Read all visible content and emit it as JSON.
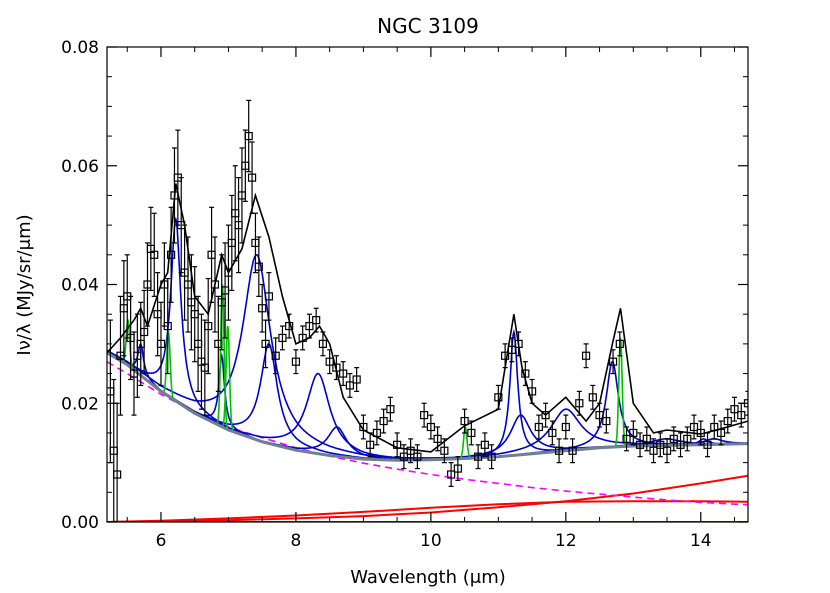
{
  "chart_data": {
    "type": "line",
    "title": "NGC 3109",
    "xlabel": "Wavelength (μm)",
    "ylabel": "Iν/λ (MJy/sr/μm)",
    "xlim": [
      5.2,
      14.7
    ],
    "ylim": [
      0.0,
      0.08
    ],
    "x_ticks": [
      6,
      8,
      10,
      12,
      14
    ],
    "x_tick_labels": [
      "6",
      "8",
      "10",
      "12",
      "14"
    ],
    "y_ticks": [
      0.0,
      0.02,
      0.04,
      0.06,
      0.08
    ],
    "y_tick_labels": [
      "0.00",
      "0.02",
      "0.04",
      "0.06",
      "0.08"
    ],
    "grid": false,
    "legend": "none",
    "colors": {
      "observed": "#000000",
      "total_model": "#000000",
      "pah_features": "#0000cc",
      "emission_lines": "#00c000",
      "stellar_continuum": "#ff00ff",
      "dust_continuum": "#ff0000",
      "total_continuum": "#708090"
    },
    "observed": {
      "x": [
        5.25,
        5.3,
        5.35,
        5.4,
        5.45,
        5.5,
        5.55,
        5.6,
        5.65,
        5.7,
        5.75,
        5.8,
        5.85,
        5.9,
        5.95,
        6.0,
        6.05,
        6.1,
        6.15,
        6.2,
        6.25,
        6.3,
        6.35,
        6.4,
        6.45,
        6.5,
        6.55,
        6.6,
        6.65,
        6.7,
        6.75,
        6.8,
        6.85,
        6.9,
        6.95,
        7.0,
        7.05,
        7.1,
        7.15,
        7.2,
        7.25,
        7.3,
        7.35,
        7.4,
        7.45,
        7.5,
        7.55,
        7.6,
        7.7,
        7.8,
        7.9,
        8.0,
        8.1,
        8.2,
        8.3,
        8.4,
        8.5,
        8.6,
        8.7,
        8.8,
        8.9,
        9.0,
        9.1,
        9.2,
        9.3,
        9.4,
        9.5,
        9.6,
        9.7,
        9.8,
        9.9,
        10.0,
        10.1,
        10.2,
        10.3,
        10.4,
        10.5,
        10.6,
        10.7,
        10.8,
        10.9,
        11.0,
        11.1,
        11.2,
        11.3,
        11.4,
        11.5,
        11.6,
        11.7,
        11.8,
        11.9,
        12.0,
        12.1,
        12.2,
        12.3,
        12.4,
        12.5,
        12.6,
        12.7,
        12.8,
        12.9,
        13.0,
        13.1,
        13.2,
        13.3,
        13.4,
        13.5,
        13.6,
        13.7,
        13.8,
        13.9,
        14.0,
        14.1,
        14.2,
        14.3,
        14.4,
        14.5,
        14.6,
        14.7
      ],
      "y": [
        0.022,
        0.012,
        0.008,
        0.028,
        0.036,
        0.038,
        0.031,
        0.025,
        0.028,
        0.03,
        0.032,
        0.04,
        0.046,
        0.045,
        0.035,
        0.03,
        0.04,
        0.033,
        0.045,
        0.055,
        0.058,
        0.05,
        0.042,
        0.04,
        0.037,
        0.035,
        0.03,
        0.027,
        0.026,
        0.033,
        0.045,
        0.04,
        0.03,
        0.037,
        0.039,
        0.042,
        0.047,
        0.052,
        0.05,
        0.055,
        0.06,
        0.065,
        0.058,
        0.047,
        0.043,
        0.036,
        0.03,
        0.038,
        0.028,
        0.031,
        0.033,
        0.027,
        0.031,
        0.033,
        0.034,
        0.03,
        0.027,
        0.026,
        0.025,
        0.023,
        0.024,
        0.016,
        0.013,
        0.015,
        0.017,
        0.019,
        0.013,
        0.011,
        0.012,
        0.011,
        0.018,
        0.016,
        0.014,
        0.012,
        0.008,
        0.009,
        0.017,
        0.015,
        0.011,
        0.013,
        0.011,
        0.021,
        0.028,
        0.029,
        0.03,
        0.025,
        0.022,
        0.016,
        0.018,
        0.015,
        0.012,
        0.016,
        0.012,
        0.02,
        0.028,
        0.021,
        0.018,
        0.017,
        0.027,
        0.03,
        0.014,
        0.015,
        0.013,
        0.014,
        0.012,
        0.013,
        0.012,
        0.014,
        0.013,
        0.014,
        0.016,
        0.015,
        0.013,
        0.016,
        0.015,
        0.017,
        0.019,
        0.018,
        0.02
      ],
      "err": [
        0.012,
        0.012,
        0.012,
        0.01,
        0.008,
        0.007,
        0.007,
        0.007,
        0.007,
        0.007,
        0.007,
        0.007,
        0.007,
        0.007,
        0.007,
        0.007,
        0.007,
        0.008,
        0.008,
        0.008,
        0.008,
        0.008,
        0.008,
        0.008,
        0.008,
        0.008,
        0.008,
        0.008,
        0.008,
        0.008,
        0.008,
        0.008,
        0.008,
        0.008,
        0.008,
        0.008,
        0.008,
        0.008,
        0.008,
        0.008,
        0.006,
        0.006,
        0.006,
        0.005,
        0.005,
        0.004,
        0.004,
        0.004,
        0.003,
        0.002,
        0.002,
        0.002,
        0.002,
        0.002,
        0.002,
        0.002,
        0.002,
        0.002,
        0.002,
        0.002,
        0.002,
        0.002,
        0.002,
        0.002,
        0.002,
        0.002,
        0.002,
        0.002,
        0.002,
        0.002,
        0.002,
        0.002,
        0.002,
        0.002,
        0.002,
        0.002,
        0.002,
        0.002,
        0.002,
        0.002,
        0.002,
        0.002,
        0.002,
        0.002,
        0.002,
        0.002,
        0.002,
        0.002,
        0.002,
        0.002,
        0.002,
        0.002,
        0.002,
        0.002,
        0.002,
        0.002,
        0.002,
        0.002,
        0.002,
        0.002,
        0.002,
        0.002,
        0.002,
        0.002,
        0.002,
        0.002,
        0.002,
        0.002,
        0.002,
        0.002,
        0.002,
        0.002,
        0.002,
        0.002,
        0.002,
        0.002,
        0.002,
        0.002,
        0.002
      ]
    },
    "stellar_continuum": {
      "x": [
        5.2,
        5.5,
        6.0,
        6.5,
        7.0,
        7.5,
        8.0,
        8.5,
        9.0,
        9.5,
        10.0,
        10.5,
        11.0,
        11.5,
        12.0,
        12.5,
        13.0,
        13.5,
        14.0,
        14.7
      ],
      "y": [
        0.027,
        0.025,
        0.0215,
        0.0185,
        0.016,
        0.0142,
        0.0125,
        0.0111,
        0.0099,
        0.0089,
        0.008,
        0.0072,
        0.0065,
        0.0058,
        0.0052,
        0.0047,
        0.0042,
        0.0037,
        0.0033,
        0.0029
      ]
    },
    "dust_continuum": [
      {
        "x": [
          5.2,
          6,
          7,
          8,
          9,
          10,
          11,
          12,
          13,
          14,
          14.7
        ],
        "y": [
          0,
          0.0001,
          0.0003,
          0.0006,
          0.001,
          0.0016,
          0.0025,
          0.0035,
          0.0048,
          0.0065,
          0.0078
        ]
      },
      {
        "x": [
          5.2,
          6,
          7,
          8,
          9,
          10,
          11,
          12,
          13,
          14,
          14.7
        ],
        "y": [
          0,
          0.0002,
          0.0006,
          0.0011,
          0.0017,
          0.0024,
          0.003,
          0.0034,
          0.0035,
          0.0035,
          0.0034
        ]
      },
      {
        "x": [
          5.2,
          6,
          7,
          8,
          9,
          10,
          11,
          12,
          13,
          14,
          14.7
        ],
        "y": [
          0.0,
          0.0,
          0.0,
          0.0,
          0.0,
          0.0,
          0.0,
          0.0,
          0.0,
          0.0,
          0.0
        ]
      }
    ],
    "total_continuum": {
      "x": [
        5.2,
        5.5,
        6.0,
        6.5,
        7.0,
        7.5,
        8.0,
        8.5,
        9.0,
        9.5,
        10.0,
        10.5,
        11.0,
        11.5,
        12.0,
        12.5,
        13.0,
        13.5,
        14.0,
        14.7
      ],
      "y": [
        0.0285,
        0.0265,
        0.022,
        0.0183,
        0.0155,
        0.0135,
        0.0121,
        0.0112,
        0.0106,
        0.0104,
        0.0105,
        0.0107,
        0.011,
        0.0115,
        0.012,
        0.0125,
        0.0128,
        0.0129,
        0.013,
        0.0132
      ]
    },
    "pah_features": [
      {
        "center": 5.7,
        "peak": 0.03,
        "fwhm": 0.1
      },
      {
        "center": 6.22,
        "peak": 0.051,
        "fwhm": 0.18
      },
      {
        "center": 6.9,
        "peak": 0.028,
        "fwhm": 0.1
      },
      {
        "center": 7.42,
        "peak": 0.045,
        "fwhm": 0.5
      },
      {
        "center": 7.6,
        "peak": 0.03,
        "fwhm": 0.3
      },
      {
        "center": 8.33,
        "peak": 0.025,
        "fwhm": 0.42
      },
      {
        "center": 8.61,
        "peak": 0.016,
        "fwhm": 0.34
      },
      {
        "center": 11.23,
        "peak": 0.032,
        "fwhm": 0.14
      },
      {
        "center": 11.33,
        "peak": 0.018,
        "fwhm": 0.36
      },
      {
        "center": 12.0,
        "peak": 0.019,
        "fwhm": 0.54
      },
      {
        "center": 12.69,
        "peak": 0.027,
        "fwhm": 0.22
      },
      {
        "center": 13.48,
        "peak": 0.014,
        "fwhm": 0.54
      },
      {
        "center": 14.04,
        "peak": 0.014,
        "fwhm": 0.16
      },
      {
        "center": 14.19,
        "peak": 0.014,
        "fwhm": 0.35
      }
    ],
    "emission_lines": [
      {
        "center": 5.51,
        "peak": 0.034
      },
      {
        "center": 6.11,
        "peak": 0.032
      },
      {
        "center": 6.91,
        "peak": 0.04
      },
      {
        "center": 6.99,
        "peak": 0.033
      },
      {
        "center": 10.51,
        "peak": 0.016
      },
      {
        "center": 12.81,
        "peak": 0.031
      }
    ],
    "total_model": {
      "x": [
        5.2,
        5.4,
        5.6,
        5.7,
        5.8,
        6.0,
        6.1,
        6.22,
        6.35,
        6.5,
        6.7,
        6.9,
        7.0,
        7.2,
        7.4,
        7.6,
        7.8,
        8.0,
        8.2,
        8.35,
        8.5,
        8.7,
        9.0,
        9.5,
        10.0,
        10.5,
        11.0,
        11.1,
        11.23,
        11.35,
        11.5,
        11.7,
        12.0,
        12.3,
        12.5,
        12.69,
        12.81,
        13.0,
        13.3,
        13.5,
        14.0,
        14.3,
        14.7
      ],
      "y": [
        0.0285,
        0.031,
        0.034,
        0.036,
        0.033,
        0.04,
        0.042,
        0.057,
        0.05,
        0.038,
        0.035,
        0.045,
        0.042,
        0.046,
        0.055,
        0.048,
        0.038,
        0.03,
        0.031,
        0.033,
        0.03,
        0.021,
        0.0155,
        0.0125,
        0.0118,
        0.0162,
        0.019,
        0.026,
        0.035,
        0.026,
        0.02,
        0.018,
        0.021,
        0.017,
        0.02,
        0.03,
        0.036,
        0.02,
        0.015,
        0.0155,
        0.0148,
        0.0157,
        0.017
      ]
    }
  }
}
